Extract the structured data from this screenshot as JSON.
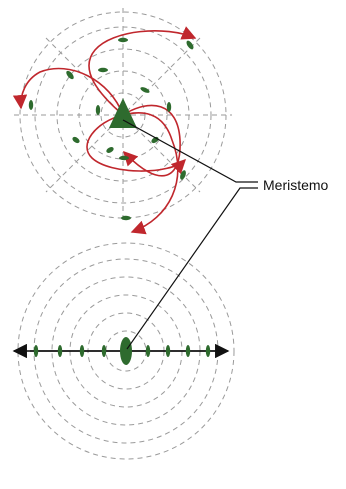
{
  "labels": {
    "meristem": "Meristemo"
  },
  "colors": {
    "guide_lines": "#9a9a9a",
    "leaf": "#2e6b2e",
    "spiral": "#c0272d",
    "callout": "#111111",
    "axis_arrow": "#111111"
  },
  "top_diagram": {
    "description_type": "spiral phyllotaxis top view",
    "ring_count": 5,
    "spiral_arm_count": 4
  },
  "bottom_diagram": {
    "description_type": "distichous phyllotaxis top view",
    "ring_count": 5
  }
}
